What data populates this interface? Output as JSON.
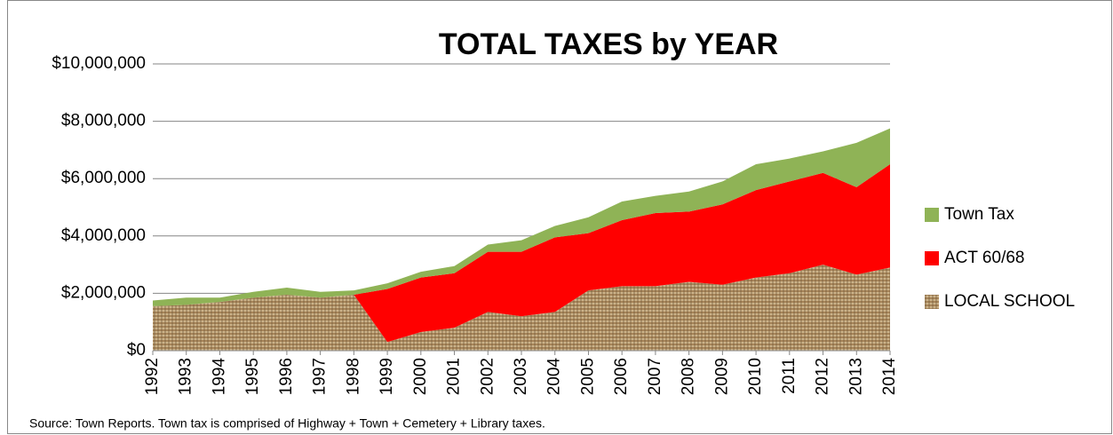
{
  "chart_data": {
    "type": "stacked-area",
    "title": "TOTAL TAXES by YEAR",
    "source": "Source: Town Reports. Town tax is comprised of  Highway  + Town + Cemetery + Library taxes.",
    "categories": [
      "1992",
      "1993",
      "1994",
      "1995",
      "1996",
      "1997",
      "1998",
      "1999",
      "2000",
      "2001",
      "2002",
      "2003",
      "2004",
      "2005",
      "2006",
      "2007",
      "2008",
      "2009",
      "2010",
      "2011",
      "2012",
      "2013",
      "2014"
    ],
    "series": [
      {
        "name": "LOCAL SCHOOL",
        "color": "#a8865a",
        "texture": true,
        "values": [
          1550000,
          1600000,
          1700000,
          1850000,
          1950000,
          1850000,
          1950000,
          300000,
          650000,
          800000,
          1350000,
          1200000,
          1350000,
          2100000,
          2250000,
          2250000,
          2400000,
          2300000,
          2550000,
          2700000,
          3000000,
          2650000,
          2900000
        ]
      },
      {
        "name": "ACT 60/68",
        "color": "#ff0000",
        "values": [
          0,
          0,
          0,
          0,
          0,
          0,
          0,
          1850000,
          1900000,
          1900000,
          2100000,
          2250000,
          2600000,
          2000000,
          2300000,
          2550000,
          2450000,
          2800000,
          3050000,
          3200000,
          3200000,
          3050000,
          3600000
        ]
      },
      {
        "name": "Town Tax",
        "color": "#8fb356",
        "values": [
          200000,
          250000,
          150000,
          200000,
          250000,
          200000,
          150000,
          200000,
          200000,
          250000,
          250000,
          400000,
          400000,
          550000,
          650000,
          600000,
          700000,
          800000,
          900000,
          800000,
          750000,
          1550000,
          1250000
        ]
      }
    ],
    "ylim": [
      0,
      10000000
    ],
    "yticks": [
      {
        "value": 0,
        "label": "$0"
      },
      {
        "value": 2000000,
        "label": "$2,000,000"
      },
      {
        "value": 4000000,
        "label": "$4,000,000"
      },
      {
        "value": 6000000,
        "label": "$6,000,000"
      },
      {
        "value": 8000000,
        "label": "$8,000,000"
      },
      {
        "value": 10000000,
        "label": "$10,000,000"
      }
    ],
    "grid": true,
    "legend": "right"
  }
}
